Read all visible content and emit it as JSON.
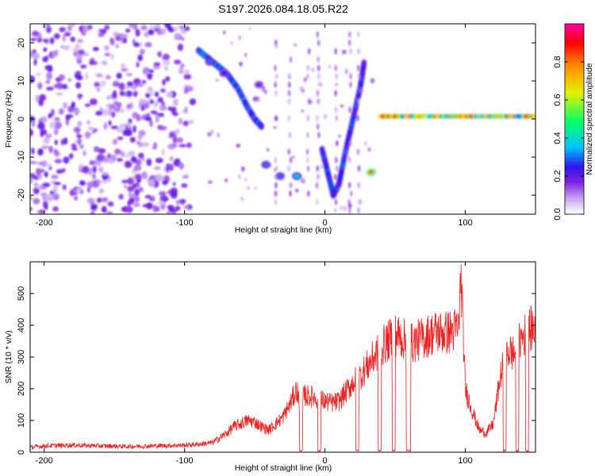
{
  "chart_data": [
    {
      "type": "heatmap",
      "title": "S197.2026.084.18.05.R22",
      "xlabel": "Height of straight line (km)",
      "ylabel": "Frequency (Hz)",
      "xlim": [
        -210,
        150
      ],
      "ylim": [
        -25,
        25
      ],
      "xticks": [
        -200,
        -100,
        0,
        100
      ],
      "yticks": [
        -20,
        -10,
        0,
        10,
        20
      ],
      "colorbar": {
        "label": "Normalized spectral amplitude",
        "range": [
          0,
          1
        ],
        "ticks": [
          "0.0",
          "0.2",
          "0.4",
          "0.6",
          "0.8"
        ],
        "colors": [
          "#ffffff",
          "#c9a8f0",
          "#7b1fe0",
          "#2a16e8",
          "#00c4ff",
          "#00ff6a",
          "#e8f000",
          "#ff8a00",
          "#ff0000",
          "#ff00a8"
        ]
      },
      "features": [
        {
          "name": "noise-region",
          "x_range": [
            -210,
            -90
          ],
          "f_range": [
            -25,
            25
          ],
          "amplitude": 0.1
        },
        {
          "name": "diagonal-track",
          "points": [
            [
              -90,
              18
            ],
            [
              -80,
              15
            ],
            [
              -70,
              12
            ],
            [
              -62,
              8
            ],
            [
              -55,
              3
            ],
            [
              -50,
              0
            ],
            [
              -45,
              -2
            ]
          ],
          "amplitude": 0.28
        },
        {
          "name": "blob-1",
          "x": -82,
          "f": 15,
          "amplitude": 0.3
        },
        {
          "name": "blob-2",
          "x": -72,
          "f": 12,
          "amplitude": 0.25
        },
        {
          "name": "blob-3",
          "x": -47,
          "f": 9,
          "amplitude": 0.22
        },
        {
          "name": "low-blob-1",
          "x": -42,
          "f": -12,
          "amplitude": 0.3
        },
        {
          "name": "low-blob-2",
          "x": -32,
          "f": -15,
          "amplitude": 0.3
        },
        {
          "name": "low-blob-3",
          "x": -20,
          "f": -15,
          "amplitude": 0.4
        },
        {
          "name": "v-track",
          "points": [
            [
              -2,
              -8
            ],
            [
              2,
              -14
            ],
            [
              6,
              -20
            ],
            [
              10,
              -17
            ],
            [
              15,
              -8
            ],
            [
              20,
              0
            ],
            [
              25,
              8
            ],
            [
              28,
              15
            ]
          ],
          "amplitude": 0.25
        },
        {
          "name": "low-blob-4",
          "x": 33,
          "f": -14,
          "amplitude": 0.85
        },
        {
          "name": "carrier-line",
          "x_range": [
            40,
            150
          ],
          "f": 0.7,
          "amplitude": 0.8
        }
      ]
    },
    {
      "type": "line",
      "xlabel": "Height of straight line (km)",
      "ylabel": "SNR (10 * v/v)",
      "xlim": [
        -210,
        150
      ],
      "ylim": [
        0,
        600
      ],
      "xticks": [
        -200,
        -100,
        0,
        100
      ],
      "yticks": [
        0,
        100,
        200,
        300,
        400,
        500
      ],
      "color": "#ee2222",
      "series": [
        {
          "name": "SNR",
          "x": [
            -210,
            -200,
            -180,
            -160,
            -140,
            -120,
            -100,
            -90,
            -80,
            -75,
            -70,
            -65,
            -60,
            -55,
            -50,
            -45,
            -40,
            -35,
            -30,
            -25,
            -20,
            -17,
            -15,
            -10,
            -5,
            0,
            5,
            10,
            15,
            20,
            25,
            30,
            35,
            40,
            45,
            50,
            55,
            60,
            65,
            70,
            75,
            80,
            85,
            90,
            95,
            97,
            100,
            105,
            110,
            115,
            120,
            125,
            130,
            135,
            140,
            145,
            150
          ],
          "y": [
            15,
            20,
            22,
            20,
            18,
            20,
            22,
            25,
            30,
            45,
            60,
            80,
            90,
            100,
            95,
            80,
            70,
            90,
            110,
            150,
            200,
            120,
            180,
            175,
            170,
            160,
            155,
            160,
            190,
            220,
            240,
            270,
            300,
            330,
            350,
            370,
            360,
            340,
            350,
            360,
            370,
            380,
            375,
            380,
            390,
            550,
            200,
            130,
            70,
            60,
            90,
            240,
            320,
            310,
            360,
            380,
            400
          ]
        }
      ]
    }
  ]
}
